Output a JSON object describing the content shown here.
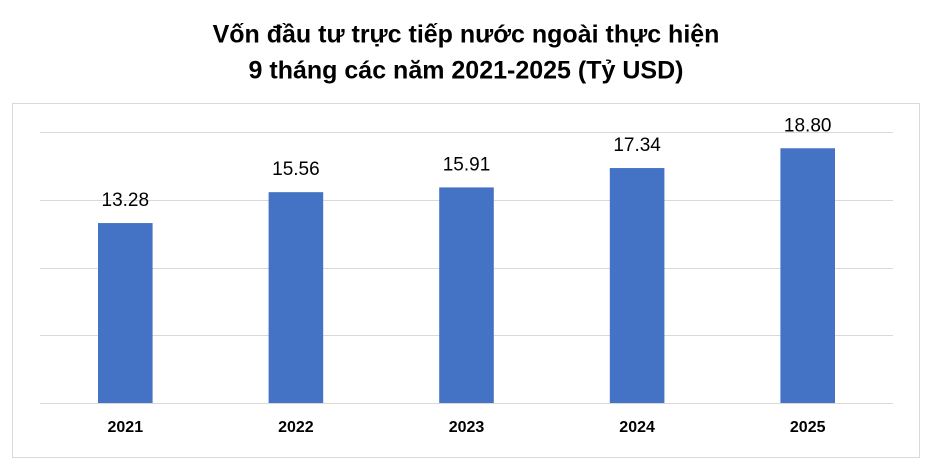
{
  "chart_data": {
    "type": "bar",
    "title": [
      "Vốn đầu tư trực tiếp nước ngoài thực hiện",
      "9 tháng các năm 2021-2025 (Tỷ USD)"
    ],
    "categories": [
      "2021",
      "2022",
      "2023",
      "2024",
      "2025"
    ],
    "values": [
      13.28,
      15.56,
      15.91,
      17.34,
      18.8
    ],
    "value_labels": [
      "13.28",
      "15.56",
      "15.91",
      "17.34",
      "18.80"
    ],
    "color": "#4472c4",
    "ylim": [
      0,
      20
    ],
    "yticks": [
      0,
      5,
      10,
      15,
      20
    ],
    "grid": true
  }
}
